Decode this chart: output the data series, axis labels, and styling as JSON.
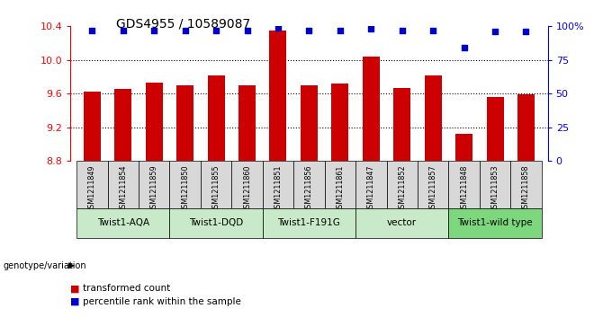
{
  "title": "GDS4955 / 10589087",
  "samples": [
    "GSM1211849",
    "GSM1211854",
    "GSM1211859",
    "GSM1211850",
    "GSM1211855",
    "GSM1211860",
    "GSM1211851",
    "GSM1211856",
    "GSM1211861",
    "GSM1211847",
    "GSM1211852",
    "GSM1211857",
    "GSM1211848",
    "GSM1211853",
    "GSM1211858"
  ],
  "bar_values": [
    9.62,
    9.65,
    9.73,
    9.7,
    9.82,
    9.7,
    10.35,
    9.7,
    9.72,
    10.04,
    9.67,
    9.82,
    9.12,
    9.56,
    9.59
  ],
  "percentile_values": [
    97,
    97,
    97,
    97,
    97,
    97,
    99,
    97,
    97,
    98,
    97,
    97,
    84,
    96,
    96
  ],
  "groups": [
    {
      "label": "Twist1-AQA",
      "start": 0,
      "end": 2,
      "color": "#c8eac8"
    },
    {
      "label": "Twist1-DQD",
      "start": 3,
      "end": 5,
      "color": "#c8eac8"
    },
    {
      "label": "Twist1-F191G",
      "start": 6,
      "end": 8,
      "color": "#c8eac8"
    },
    {
      "label": "vector",
      "start": 9,
      "end": 11,
      "color": "#c8eac8"
    },
    {
      "label": "Twist1-wild type",
      "start": 12,
      "end": 14,
      "color": "#7dd87d"
    }
  ],
  "ylim_left": [
    8.8,
    10.4
  ],
  "ylim_right": [
    0,
    100
  ],
  "yticks_left": [
    8.8,
    9.2,
    9.6,
    10.0,
    10.4
  ],
  "yticks_right": [
    0,
    25,
    50,
    75,
    100
  ],
  "ytick_labels_right": [
    "0",
    "25",
    "50",
    "75",
    "100%"
  ],
  "bar_color": "#cc0000",
  "dot_color": "#0000cc",
  "bar_width": 0.55,
  "legend_red": "transformed count",
  "legend_blue": "percentile rank within the sample",
  "genotype_label": "genotype/variation",
  "sample_box_color": "#d8d8d8",
  "grid_dotted_values": [
    9.2,
    9.6,
    10.0
  ]
}
